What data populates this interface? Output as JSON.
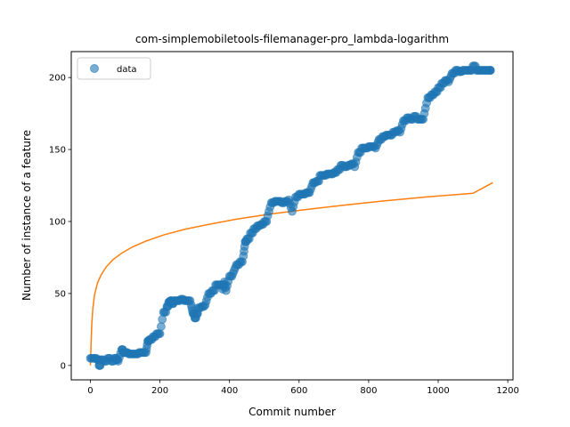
{
  "chart_data": {
    "type": "scatter",
    "title": "com-simplemobiletools-filemanager-pro_lambda-logarithm",
    "xlabel": "Commit number",
    "ylabel": "Number of instance of a feature",
    "xlim": [
      -55,
      1215
    ],
    "ylim": [
      -10,
      218
    ],
    "xticks": [
      0,
      200,
      400,
      600,
      800,
      1000,
      1200
    ],
    "yticks": [
      0,
      50,
      100,
      150,
      200
    ],
    "grid": false,
    "legend": {
      "position": "top-left",
      "entries": [
        "data"
      ]
    },
    "series": [
      {
        "name": "data",
        "kind": "scatter",
        "color": "#1f77b4",
        "x": [
          0,
          10,
          20,
          25,
          30,
          40,
          50,
          60,
          70,
          75,
          80,
          90,
          95,
          100,
          110,
          120,
          130,
          140,
          150,
          160,
          165,
          170,
          180,
          190,
          200,
          210,
          220,
          225,
          230,
          235,
          240,
          250,
          260,
          270,
          280,
          290,
          295,
          300,
          305,
          310,
          320,
          330,
          340,
          350,
          360,
          370,
          380,
          385,
          390,
          400,
          410,
          420,
          430,
          440,
          445,
          450,
          460,
          470,
          480,
          490,
          500,
          510,
          520,
          530,
          540,
          550,
          560,
          570,
          580,
          590,
          600,
          610,
          620,
          630,
          640,
          650,
          660,
          670,
          680,
          690,
          700,
          710,
          720,
          730,
          740,
          750,
          760,
          770,
          780,
          790,
          800,
          810,
          820,
          830,
          840,
          850,
          860,
          870,
          880,
          890,
          900,
          910,
          920,
          930,
          940,
          950,
          960,
          970,
          980,
          990,
          1000,
          1010,
          1020,
          1030,
          1040,
          1050,
          1060,
          1070,
          1080,
          1090,
          1100,
          1110,
          1120,
          1130,
          1140,
          1150
        ],
        "y": [
          5,
          5,
          4,
          0,
          4,
          3,
          5,
          3,
          5,
          4,
          3,
          11,
          9,
          9,
          8,
          8,
          8,
          9,
          9,
          9,
          17,
          18,
          20,
          22,
          22,
          37,
          41,
          44,
          45,
          43,
          45,
          45,
          46,
          45,
          45,
          42,
          36,
          33,
          36,
          40,
          41,
          42,
          50,
          52,
          56,
          56,
          53,
          58,
          52,
          62,
          64,
          70,
          72,
          76,
          86,
          88,
          92,
          95,
          97,
          98,
          100,
          104,
          113,
          114,
          114,
          113,
          114,
          115,
          107,
          117,
          119,
          119,
          120,
          120,
          127,
          128,
          132,
          132,
          133,
          133,
          134,
          136,
          139,
          138,
          139,
          140,
          138,
          148,
          151,
          151,
          152,
          152,
          151,
          157,
          159,
          160,
          160,
          162,
          163,
          162,
          170,
          172,
          171,
          173,
          171,
          171,
          175,
          186,
          188,
          190,
          193,
          196,
          198,
          197,
          203,
          205,
          204,
          205,
          205,
          205,
          208,
          205,
          205,
          205,
          205,
          205
        ]
      },
      {
        "name": "",
        "kind": "line",
        "color": "#ff7f0e",
        "x": [
          0,
          1,
          2,
          4,
          7,
          12,
          20,
          30,
          45,
          65,
          90,
          120,
          160,
          210,
          270,
          340,
          420,
          510,
          610,
          720,
          840,
          970,
          1100,
          1157
        ],
        "y": [
          0,
          6.6,
          15.3,
          28.5,
          39.4,
          49.1,
          57.0,
          62.5,
          68.3,
          73.5,
          78.0,
          82.2,
          86.4,
          90.6,
          94.5,
          98.0,
          101.6,
          104.9,
          108.0,
          111.1,
          114.2,
          117.1,
          119.6,
          127.0
        ]
      }
    ]
  }
}
